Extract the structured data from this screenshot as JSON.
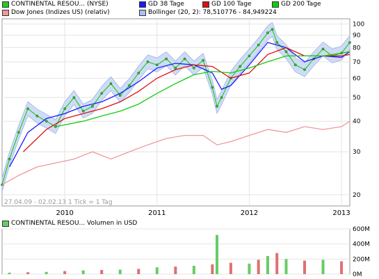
{
  "legend": {
    "items": [
      {
        "label": "CONTINENTAL RESOU... (NYSE)",
        "color": "#22cc22"
      },
      {
        "label": "GD 38 Tage",
        "color": "#1a1aff"
      },
      {
        "label": "GD 100 Tage",
        "color": "#dd1111"
      },
      {
        "label": "GD 200 Tage",
        "color": "#11cc11"
      },
      {
        "label": "Dow Jones (Indizes US) (relativ)",
        "color": "#ee9999"
      },
      {
        "label": "Bollinger (20, 2): 78,510776 - 84,949224",
        "color": "#a8c0ee"
      }
    ]
  },
  "date_range_note": "27.04.09 - 02.02.13   1 Tick = 1 Tag",
  "volume_legend": {
    "label": "CONTINENTAL RESOU... Volumen in USD",
    "color": "#66cc66"
  },
  "chart_data": [
    {
      "type": "line",
      "title": "CONTINENTAL RESOU... (NYSE)",
      "x_tick_labels": [
        "2010",
        "2011",
        "2012",
        "2013"
      ],
      "y_tick_labels": [
        "20",
        "30",
        "40",
        "50",
        "60",
        "70",
        "80",
        "90",
        "100"
      ],
      "y_scale": "log",
      "ylim": [
        18,
        105
      ],
      "x_start": 2009.32,
      "x_end": 2013.09,
      "series": [
        {
          "name": "CONTINENTAL RESOU... (NYSE)",
          "x": [
            2009.32,
            2009.4,
            2009.5,
            2009.6,
            2009.7,
            2009.8,
            2009.9,
            2010.0,
            2010.1,
            2010.2,
            2010.3,
            2010.4,
            2010.5,
            2010.6,
            2010.7,
            2010.8,
            2010.9,
            2011.0,
            2011.1,
            2011.2,
            2011.3,
            2011.4,
            2011.5,
            2011.6,
            2011.65,
            2011.7,
            2011.8,
            2011.9,
            2012.0,
            2012.1,
            2012.2,
            2012.25,
            2012.3,
            2012.4,
            2012.5,
            2012.6,
            2012.7,
            2012.8,
            2012.9,
            2013.0,
            2013.09
          ],
          "values": [
            22,
            28,
            36,
            45,
            42,
            40,
            38,
            45,
            50,
            44,
            46,
            52,
            57,
            51,
            56,
            63,
            70,
            68,
            72,
            66,
            72,
            66,
            71,
            55,
            46,
            50,
            60,
            67,
            74,
            82,
            92,
            95,
            84,
            77,
            68,
            65,
            72,
            79,
            74,
            76,
            84
          ]
        },
        {
          "name": "GD 38 Tage",
          "x": [
            2009.4,
            2009.6,
            2009.8,
            2010.0,
            2010.2,
            2010.4,
            2010.6,
            2010.8,
            2011.0,
            2011.2,
            2011.4,
            2011.6,
            2011.7,
            2011.8,
            2012.0,
            2012.2,
            2012.4,
            2012.6,
            2012.8,
            2013.0,
            2013.09
          ],
          "values": [
            26,
            36,
            41,
            43,
            46,
            48,
            52,
            58,
            66,
            69,
            68,
            63,
            54,
            56,
            68,
            84,
            80,
            70,
            74,
            73,
            77
          ]
        },
        {
          "name": "GD 100 Tage",
          "x": [
            2009.55,
            2009.8,
            2010.0,
            2010.2,
            2010.4,
            2010.6,
            2010.8,
            2011.0,
            2011.2,
            2011.4,
            2011.6,
            2011.8,
            2012.0,
            2012.2,
            2012.4,
            2012.6,
            2012.8,
            2013.0,
            2013.09
          ],
          "values": [
            30,
            37,
            41,
            43,
            45,
            48,
            53,
            60,
            65,
            68,
            67,
            60,
            63,
            75,
            80,
            74,
            74,
            74,
            75
          ]
        },
        {
          "name": "GD 200 Tage",
          "x": [
            2009.9,
            2010.2,
            2010.4,
            2010.6,
            2010.8,
            2011.0,
            2011.2,
            2011.4,
            2011.6,
            2011.8,
            2012.0,
            2012.2,
            2012.4,
            2012.6,
            2012.8,
            2013.0,
            2013.09
          ],
          "values": [
            38,
            40,
            42,
            44,
            47,
            52,
            57,
            62,
            64,
            63,
            66,
            70,
            74,
            74,
            74,
            76,
            77
          ]
        },
        {
          "name": "Dow Jones (Indizes US) (relativ)",
          "x": [
            2009.32,
            2009.5,
            2009.7,
            2009.9,
            2010.1,
            2010.3,
            2010.5,
            2010.7,
            2010.9,
            2011.1,
            2011.3,
            2011.5,
            2011.65,
            2011.8,
            2012.0,
            2012.2,
            2012.4,
            2012.6,
            2012.8,
            2013.0,
            2013.09
          ],
          "values": [
            22,
            24,
            26,
            27,
            28,
            30,
            28,
            30,
            32,
            34,
            35,
            35,
            32,
            33,
            35,
            37,
            36,
            38,
            37,
            38,
            40
          ]
        }
      ]
    },
    {
      "type": "bar",
      "title": "CONTINENTAL RESOU... Volumen in USD",
      "y_tick_labels": [
        "0M",
        "200M",
        "400M",
        "600M"
      ],
      "ylim": [
        0,
        600
      ],
      "x": [
        2009.4,
        2009.6,
        2009.8,
        2010.0,
        2010.2,
        2010.4,
        2010.6,
        2010.8,
        2011.0,
        2011.2,
        2011.4,
        2011.6,
        2011.65,
        2011.8,
        2012.0,
        2012.1,
        2012.2,
        2012.3,
        2012.4,
        2012.6,
        2012.8,
        2013.0
      ],
      "values": [
        20,
        25,
        30,
        40,
        50,
        55,
        60,
        70,
        90,
        100,
        110,
        130,
        520,
        150,
        140,
        190,
        240,
        280,
        200,
        180,
        190,
        170
      ]
    }
  ]
}
